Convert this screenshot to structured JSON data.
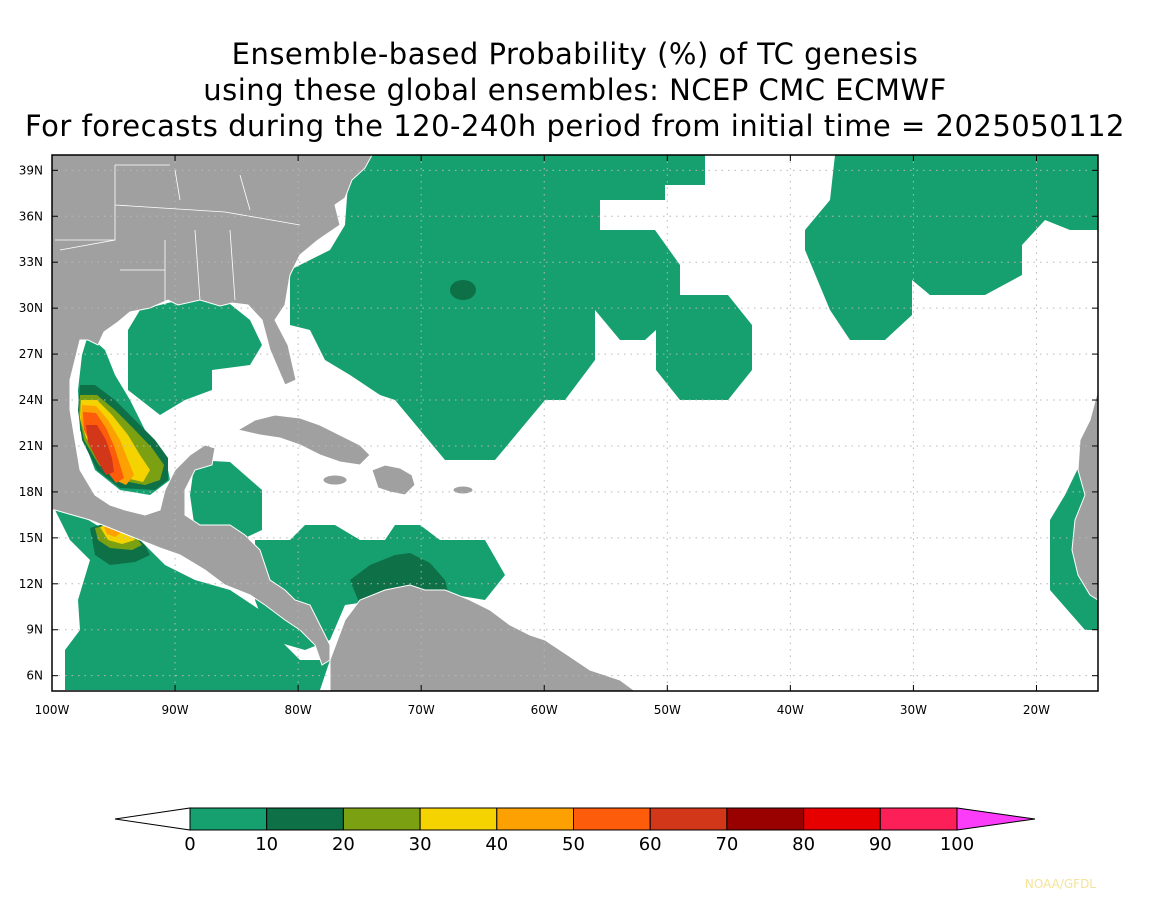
{
  "title": {
    "line1": "Ensemble-based Probability (%) of TC genesis",
    "line2": "using these global ensembles:   NCEP CMC ECMWF",
    "line3": "For forecasts during the 120-240h period from initial time = 2025050112"
  },
  "map": {
    "lon_range": [
      -100,
      -15
    ],
    "lat_range": [
      5,
      40
    ],
    "land_color": "#a0a0a0",
    "ocean_color": "#ffffff",
    "grid": "dotted",
    "lat_ticks": [
      {
        "value": 39,
        "label": "39N"
      },
      {
        "value": 36,
        "label": "36N"
      },
      {
        "value": 33,
        "label": "33N"
      },
      {
        "value": 30,
        "label": "30N"
      },
      {
        "value": 27,
        "label": "27N"
      },
      {
        "value": 24,
        "label": "24N"
      },
      {
        "value": 21,
        "label": "21N"
      },
      {
        "value": 18,
        "label": "18N"
      },
      {
        "value": 15,
        "label": "15N"
      },
      {
        "value": 12,
        "label": "12N"
      },
      {
        "value": 9,
        "label": "9N"
      },
      {
        "value": 6,
        "label": "6N"
      }
    ],
    "lon_ticks": [
      {
        "value": -100,
        "label": "100W"
      },
      {
        "value": -90,
        "label": "90W"
      },
      {
        "value": -80,
        "label": "80W"
      },
      {
        "value": -70,
        "label": "70W"
      },
      {
        "value": -60,
        "label": "60W"
      },
      {
        "value": -50,
        "label": "50W"
      },
      {
        "value": -40,
        "label": "40W"
      },
      {
        "value": -30,
        "label": "30W"
      },
      {
        "value": -20,
        "label": "20W"
      }
    ]
  },
  "colorbar": {
    "colors": [
      "#16a070",
      "#0e7046",
      "#7ba113",
      "#f4d300",
      "#fda102",
      "#fd5c0b",
      "#d33719",
      "#990000",
      "#e60000",
      "#fd1f58"
    ],
    "over_color": "#fb3cf9",
    "under_color": "#ffffff",
    "labels": [
      "0",
      "10",
      "20",
      "30",
      "40",
      "50",
      "60",
      "70",
      "80",
      "90",
      "100"
    ]
  },
  "credit": {
    "text": "NOAA/GFDL",
    "color": "#f3e39a"
  }
}
